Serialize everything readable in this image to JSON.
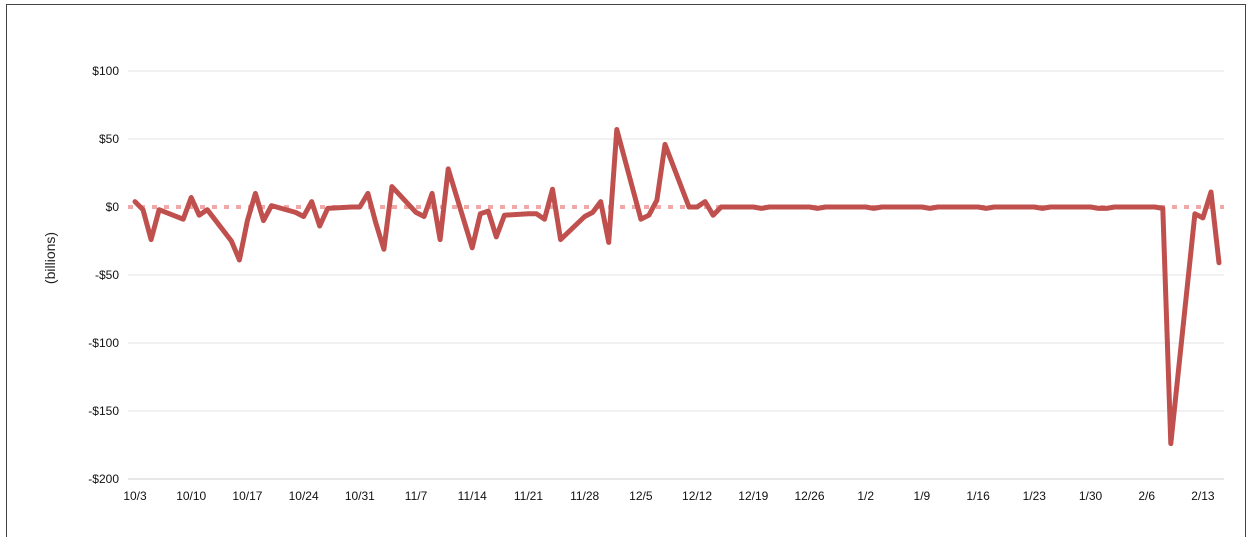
{
  "chart_data": {
    "type": "line",
    "title": "",
    "xlabel": "",
    "ylabel": "(billions)",
    "ylim": [
      -200,
      100
    ],
    "y_ticks": [
      100,
      50,
      0,
      -50,
      -100,
      -150,
      -200
    ],
    "y_tick_labels": [
      "$100",
      "$50",
      "$0",
      "-$50",
      "-$100",
      "-$150",
      "-$200"
    ],
    "x_tick_labels": [
      "10/3",
      "10/10",
      "10/17",
      "10/24",
      "10/31",
      "11/7",
      "11/14",
      "11/21",
      "11/28",
      "12/5",
      "12/12",
      "12/19",
      "12/26",
      "1/2",
      "1/9",
      "1/16",
      "1/23",
      "1/30",
      "2/6",
      "2/13"
    ],
    "grid": true,
    "colors": {
      "series": "#c0504d",
      "zero_line": "#f0a8a8",
      "grid": "#e3e3e3",
      "border": "#444444"
    },
    "series": [
      {
        "points": [
          [
            "10/3",
            4
          ],
          [
            "10/4",
            -2
          ],
          [
            "10/5",
            -24
          ],
          [
            "10/6",
            -2
          ],
          [
            "10/9",
            -9
          ],
          [
            "10/10",
            7
          ],
          [
            "10/11",
            -6
          ],
          [
            "10/12",
            -2
          ],
          [
            "10/15",
            -25
          ],
          [
            "10/16",
            -39
          ],
          [
            "10/17",
            -10
          ],
          [
            "10/18",
            10
          ],
          [
            "10/19",
            -10
          ],
          [
            "10/20",
            1
          ],
          [
            "10/23",
            -4
          ],
          [
            "10/24",
            -7
          ],
          [
            "10/25",
            4
          ],
          [
            "10/26",
            -14
          ],
          [
            "10/27",
            -1
          ],
          [
            "10/30",
            0
          ],
          [
            "10/31",
            0
          ],
          [
            "11/1",
            10
          ],
          [
            "11/2",
            -12
          ],
          [
            "11/3",
            -31
          ],
          [
            "11/4",
            15
          ],
          [
            "11/7",
            -4
          ],
          [
            "11/8",
            -7
          ],
          [
            "11/9",
            10
          ],
          [
            "11/10",
            -24
          ],
          [
            "11/11",
            28
          ],
          [
            "11/14",
            -30
          ],
          [
            "11/15",
            -5
          ],
          [
            "11/16",
            -3
          ],
          [
            "11/17",
            -22
          ],
          [
            "11/18",
            -6
          ],
          [
            "11/21",
            -5
          ],
          [
            "11/22",
            -5
          ],
          [
            "11/23",
            -9
          ],
          [
            "11/24",
            13
          ],
          [
            "11/25",
            -24
          ],
          [
            "11/28",
            -7
          ],
          [
            "11/29",
            -4
          ],
          [
            "11/30",
            4
          ],
          [
            "12/1",
            -26
          ],
          [
            "12/2",
            57
          ],
          [
            "12/5",
            -9
          ],
          [
            "12/6",
            -6
          ],
          [
            "12/7",
            5
          ],
          [
            "12/8",
            46
          ],
          [
            "12/11",
            0
          ],
          [
            "12/12",
            0
          ],
          [
            "12/13",
            4
          ],
          [
            "12/14",
            -6
          ],
          [
            "12/15",
            0
          ],
          [
            "12/18",
            0
          ],
          [
            "12/19",
            0
          ],
          [
            "12/20",
            -1
          ],
          [
            "12/21",
            0
          ],
          [
            "12/22",
            0
          ],
          [
            "12/26",
            0
          ],
          [
            "12/27",
            -1
          ],
          [
            "12/28",
            0
          ],
          [
            "12/29",
            0
          ],
          [
            "1/2",
            0
          ],
          [
            "1/3",
            -1
          ],
          [
            "1/4",
            0
          ],
          [
            "1/5",
            0
          ],
          [
            "1/8",
            0
          ],
          [
            "1/9",
            0
          ],
          [
            "1/10",
            -1
          ],
          [
            "1/11",
            0
          ],
          [
            "1/12",
            0
          ],
          [
            "1/16",
            0
          ],
          [
            "1/17",
            -1
          ],
          [
            "1/18",
            0
          ],
          [
            "1/19",
            0
          ],
          [
            "1/22",
            0
          ],
          [
            "1/23",
            0
          ],
          [
            "1/24",
            -1
          ],
          [
            "1/25",
            0
          ],
          [
            "1/26",
            0
          ],
          [
            "1/29",
            0
          ],
          [
            "1/30",
            0
          ],
          [
            "1/31",
            -1
          ],
          [
            "2/1",
            -1
          ],
          [
            "2/2",
            0
          ],
          [
            "2/5",
            0
          ],
          [
            "2/6",
            0
          ],
          [
            "2/7",
            0
          ],
          [
            "2/8",
            -1
          ],
          [
            "2/9",
            -174
          ],
          [
            "2/12",
            -5
          ],
          [
            "2/13",
            -8
          ],
          [
            "2/14",
            11
          ],
          [
            "2/15",
            -41
          ]
        ]
      }
    ]
  }
}
